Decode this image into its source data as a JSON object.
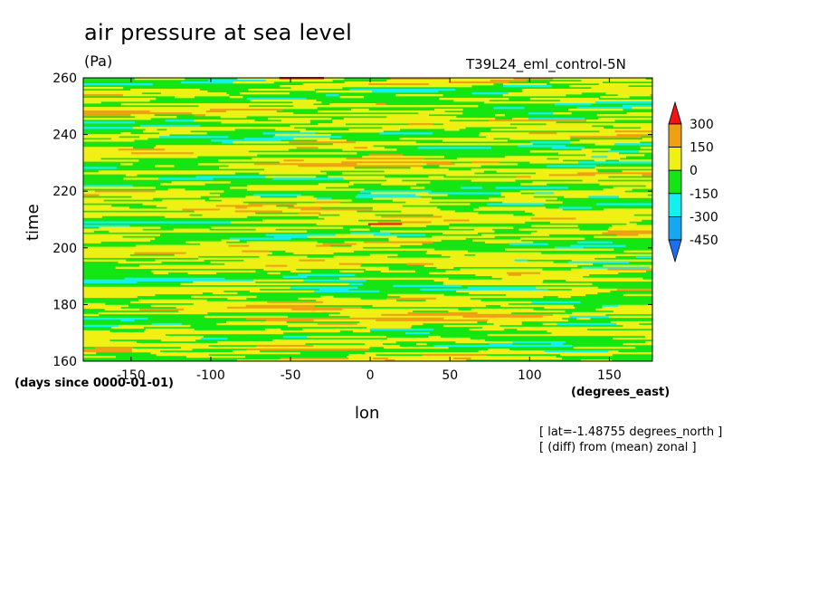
{
  "title": "air pressure at sea level",
  "units": "(Pa)",
  "run_name": "T39L24_eml_control-5N",
  "notes": [
    "[ lat=-1.48755 degrees_north ]",
    "[ (diff) from (mean) zonal ]"
  ],
  "chart_data": {
    "type": "heatmap",
    "title": "air pressure at sea level",
    "xlabel": "lon",
    "ylabel": "time",
    "x_unit": "(degrees_east)",
    "y_unit": "(days since 0000-01-01)",
    "xlim": [
      -180,
      177
    ],
    "ylim": [
      160,
      260
    ],
    "x_ticks": [
      -150,
      -100,
      -50,
      0,
      50,
      100,
      150
    ],
    "x_tick_labels": [
      "-150",
      "-100",
      "-50",
      "0",
      "50",
      "100",
      "150"
    ],
    "y_ticks": [
      160,
      180,
      200,
      220,
      240,
      260
    ],
    "y_tick_labels": [
      "160",
      "180",
      "200",
      "220",
      "240",
      "260"
    ],
    "color_levels": [
      -450,
      -300,
      -150,
      0,
      150,
      300
    ],
    "colorbar_labels": [
      "300",
      "150",
      "0",
      "-150",
      "-300",
      "-450"
    ],
    "colors": {
      "below_-450": "#1e6ff0",
      "-450_-300": "#15a8f0",
      "-300_-150": "#14f0f0",
      "-150_0": "#14e614",
      "0_150": "#f0f014",
      "150_300": "#f0a014",
      "above_300": "#f01414"
    },
    "field_summary": {
      "dominant_range": "-150 to 150",
      "sign_alternation": "fine horizontal banding in time",
      "occasional_extremes": [
        "-300 to -150 near x 100-150",
        "150 to 300 near x -60 to 30"
      ]
    }
  }
}
